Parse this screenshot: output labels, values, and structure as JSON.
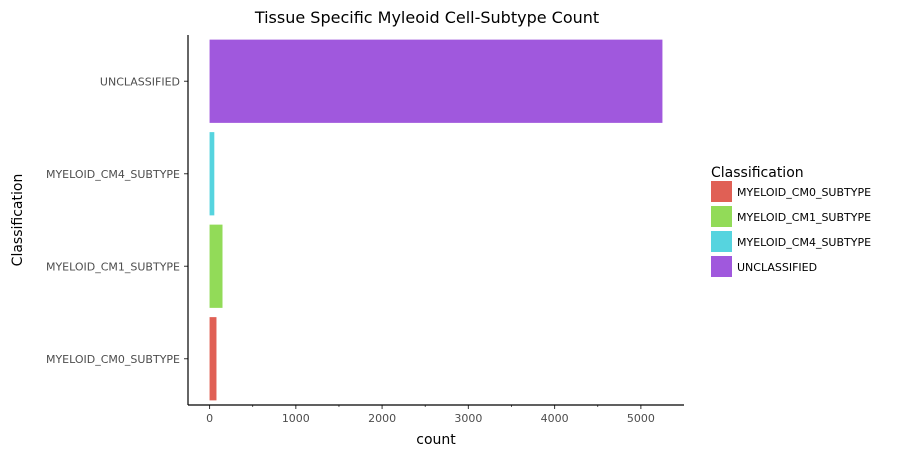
{
  "chart_data": {
    "type": "bar",
    "orientation": "horizontal",
    "title": "Tissue Specific Myleoid Cell-Subtype Count",
    "xlabel": "count",
    "ylabel": "Classification",
    "categories": [
      "MYELOID_CM0_SUBTYPE",
      "MYELOID_CM1_SUBTYPE",
      "MYELOID_CM4_SUBTYPE",
      "UNCLASSIFIED"
    ],
    "values": [
      80,
      150,
      55,
      5250
    ],
    "colors": [
      "#e06055",
      "#92db58",
      "#56d4df",
      "#a058dd"
    ],
    "xlim": [
      -250,
      5500
    ],
    "xticks": [
      0,
      1000,
      2000,
      3000,
      4000,
      5000
    ],
    "xtick_labels": [
      "0",
      "1000",
      "2000",
      "3000",
      "4000",
      "5000"
    ],
    "grid": false,
    "legend": {
      "title": "Classification",
      "position": "right",
      "entries": [
        "MYELOID_CM0_SUBTYPE",
        "MYELOID_CM1_SUBTYPE",
        "MYELOID_CM4_SUBTYPE",
        "UNCLASSIFIED"
      ]
    }
  }
}
